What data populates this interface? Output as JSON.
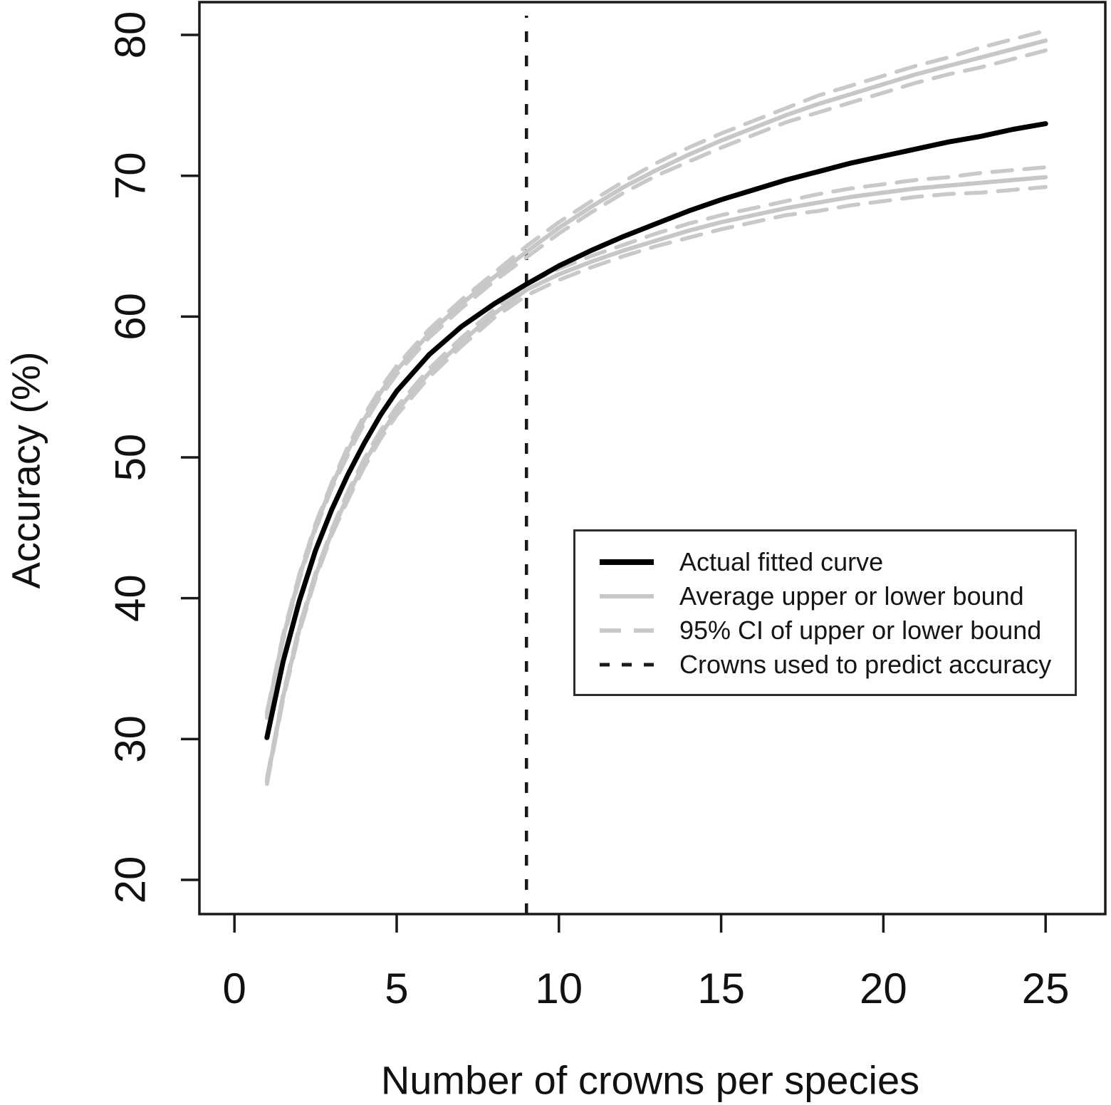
{
  "chart_data": {
    "type": "line",
    "title": "",
    "xlabel": "Number of crowns per species",
    "ylabel": "Accuracy (%)",
    "xlim": [
      -1.08,
      26.84
    ],
    "ylim": [
      17.57,
      82.33
    ],
    "xticks": [
      "0",
      "5",
      "10",
      "15",
      "20",
      "25"
    ],
    "xtick_values": [
      0,
      5,
      10,
      15,
      20,
      25
    ],
    "yticks": [
      "20",
      "30",
      "40",
      "50",
      "60",
      "70",
      "80"
    ],
    "ytick_values": [
      20,
      30,
      40,
      50,
      60,
      70,
      80
    ],
    "grid": false,
    "frame_color": "#1a1a1a",
    "vline": {
      "x": 9,
      "label": "Crowns used to predict accuracy",
      "color": "#1a1a1a",
      "width": 4.5,
      "dash": "15 19",
      "y_top": 22
    },
    "x": [
      1,
      1.5,
      2,
      2.5,
      3,
      3.5,
      4,
      4.5,
      5,
      6,
      7,
      8,
      9,
      10,
      11,
      12,
      13,
      14,
      15,
      16,
      17,
      18,
      19,
      20,
      21,
      22,
      23,
      24,
      25
    ],
    "series": [
      {
        "id": "upper-ci-high",
        "name": "95% CI of upper or lower bound",
        "color": "#c9c9c9",
        "width": 5.5,
        "dash": "28 17",
        "y": [
          31.9,
          37.4,
          41.7,
          45.3,
          48.2,
          50.8,
          53.0,
          54.9,
          56.5,
          59.1,
          61.2,
          63.1,
          65.0,
          66.7,
          68.2,
          69.6,
          70.9,
          72.0,
          73.0,
          73.9,
          74.8,
          75.7,
          76.4,
          77.1,
          77.8,
          78.4,
          79.1,
          79.7,
          80.3
        ]
      },
      {
        "id": "upper-ci-low",
        "name": "95% CI of upper or lower bound",
        "color": "#c9c9c9",
        "width": 5.5,
        "dash": "28 17",
        "y": [
          31.5,
          37.0,
          41.3,
          44.9,
          47.8,
          50.2,
          52.4,
          54.3,
          55.9,
          58.5,
          60.6,
          62.5,
          64.2,
          65.9,
          67.4,
          68.8,
          70.0,
          71.0,
          72.0,
          72.9,
          73.8,
          74.5,
          75.2,
          75.9,
          76.6,
          77.2,
          77.7,
          78.3,
          78.9
        ]
      },
      {
        "id": "lower-ci-high",
        "name": "95% CI of upper or lower bound",
        "color": "#c9c9c9",
        "width": 5.5,
        "dash": "28 17",
        "y": [
          27.2,
          33.2,
          38.0,
          41.8,
          44.9,
          47.6,
          49.9,
          51.9,
          53.6,
          56.3,
          58.5,
          60.5,
          62.3,
          63.4,
          64.3,
          65.1,
          65.9,
          66.6,
          67.2,
          67.7,
          68.2,
          68.7,
          69.1,
          69.4,
          69.7,
          69.9,
          70.2,
          70.4,
          70.6
        ]
      },
      {
        "id": "lower-ci-low",
        "name": "95% CI of upper or lower bound",
        "color": "#c9c9c9",
        "width": 5.5,
        "dash": "28 17",
        "y": [
          26.8,
          32.8,
          37.6,
          41.4,
          44.5,
          47.0,
          49.3,
          51.3,
          53.0,
          55.7,
          57.9,
          59.9,
          61.5,
          62.6,
          63.5,
          64.3,
          65.0,
          65.6,
          66.2,
          66.7,
          67.2,
          67.5,
          67.9,
          68.2,
          68.5,
          68.7,
          68.8,
          69.0,
          69.2
        ]
      },
      {
        "id": "upper-bound-avg",
        "name": "Average upper or lower bound",
        "color": "#c7c7c7",
        "width": 6,
        "dash": "",
        "y": [
          31.7,
          37.2,
          41.5,
          45.1,
          48.0,
          50.5,
          52.7,
          54.6,
          56.2,
          58.8,
          60.9,
          62.8,
          64.6,
          66.3,
          67.8,
          69.2,
          70.4,
          71.5,
          72.5,
          73.4,
          74.3,
          75.1,
          75.8,
          76.5,
          77.2,
          77.8,
          78.4,
          79.0,
          79.6
        ]
      },
      {
        "id": "lower-bound-avg",
        "name": "Average upper or lower bound",
        "color": "#c7c7c7",
        "width": 6,
        "dash": "",
        "y": [
          27.0,
          33.0,
          37.8,
          41.6,
          44.7,
          47.3,
          49.6,
          51.6,
          53.3,
          56.0,
          58.2,
          60.2,
          61.9,
          63.0,
          63.9,
          64.7,
          65.4,
          66.1,
          66.7,
          67.2,
          67.7,
          68.1,
          68.5,
          68.8,
          69.1,
          69.3,
          69.5,
          69.7,
          69.9
        ]
      },
      {
        "id": "fitted-curve",
        "name": "Actual fitted curve",
        "color": "#000000",
        "width": 7,
        "dash": "",
        "y": [
          30.1,
          35.5,
          39.8,
          43.4,
          46.3,
          48.8,
          51.0,
          53.0,
          54.7,
          57.3,
          59.3,
          60.9,
          62.3,
          63.6,
          64.7,
          65.7,
          66.6,
          67.5,
          68.3,
          69.0,
          69.7,
          70.3,
          70.9,
          71.4,
          71.9,
          72.4,
          72.8,
          73.3,
          73.7
        ]
      }
    ],
    "legend": {
      "position": "inside-right",
      "items": [
        {
          "label": "Actual fitted curve",
          "color": "#000000",
          "dash": "",
          "width": 8
        },
        {
          "label": "Average upper or lower bound",
          "color": "#c7c7c7",
          "dash": "",
          "width": 6
        },
        {
          "label": "95% CI of upper or lower bound",
          "color": "#c9c9c9",
          "dash": "30 18",
          "width": 6
        },
        {
          "label": "Crowns used to predict accuracy",
          "color": "#1a1a1a",
          "dash": "14 17",
          "width": 5
        }
      ]
    }
  }
}
